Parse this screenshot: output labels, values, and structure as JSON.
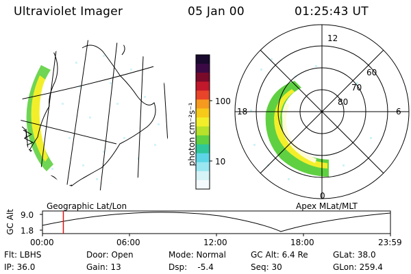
{
  "header": {
    "instrument": "Ultraviolet Imager",
    "date": "05 Jan 00",
    "time": "01:25:43 UT"
  },
  "colorbar": {
    "unit_label": "photon cm⁻²s⁻¹",
    "ticks": [
      "100",
      "10"
    ],
    "colors": [
      "#1a0a2e",
      "#3b0a45",
      "#7a0a2a",
      "#c2182b",
      "#e8442a",
      "#f59a1f",
      "#f7c919",
      "#f2ef2a",
      "#b7e12a",
      "#5fd041",
      "#2fc79a",
      "#5cd6e6",
      "#9ae7f2",
      "#d6f3f7",
      "#f5fbfc"
    ]
  },
  "polar_plot": {
    "lat_labels": [
      "80",
      "70",
      "60"
    ],
    "mlt_labels": [
      "12",
      "18",
      "6",
      "0"
    ]
  },
  "timeline": {
    "left_label": "Geographic Lat/Lon",
    "right_label": "Apex MLat/MLT",
    "axis_label": "GC Alt",
    "y_max": "9.0",
    "y_min": "1.8",
    "time_ticks": [
      "00:00",
      "06:00",
      "12:00",
      "18:00",
      "23:59"
    ],
    "current_time_fraction": 0.06
  },
  "info": {
    "flt": "Flt: LBHS",
    "door": "Door: Open",
    "mode": "Mode: Normal",
    "gc_alt": "GC Alt: 6.4 Re",
    "glat": "GLat:  38.0",
    "ip": "IP: 36.0",
    "gain": "Gain: 13",
    "dsp": "Dsp:    -5.4",
    "seq": "Seq: 30",
    "glon": "GLon: 259.4"
  }
}
